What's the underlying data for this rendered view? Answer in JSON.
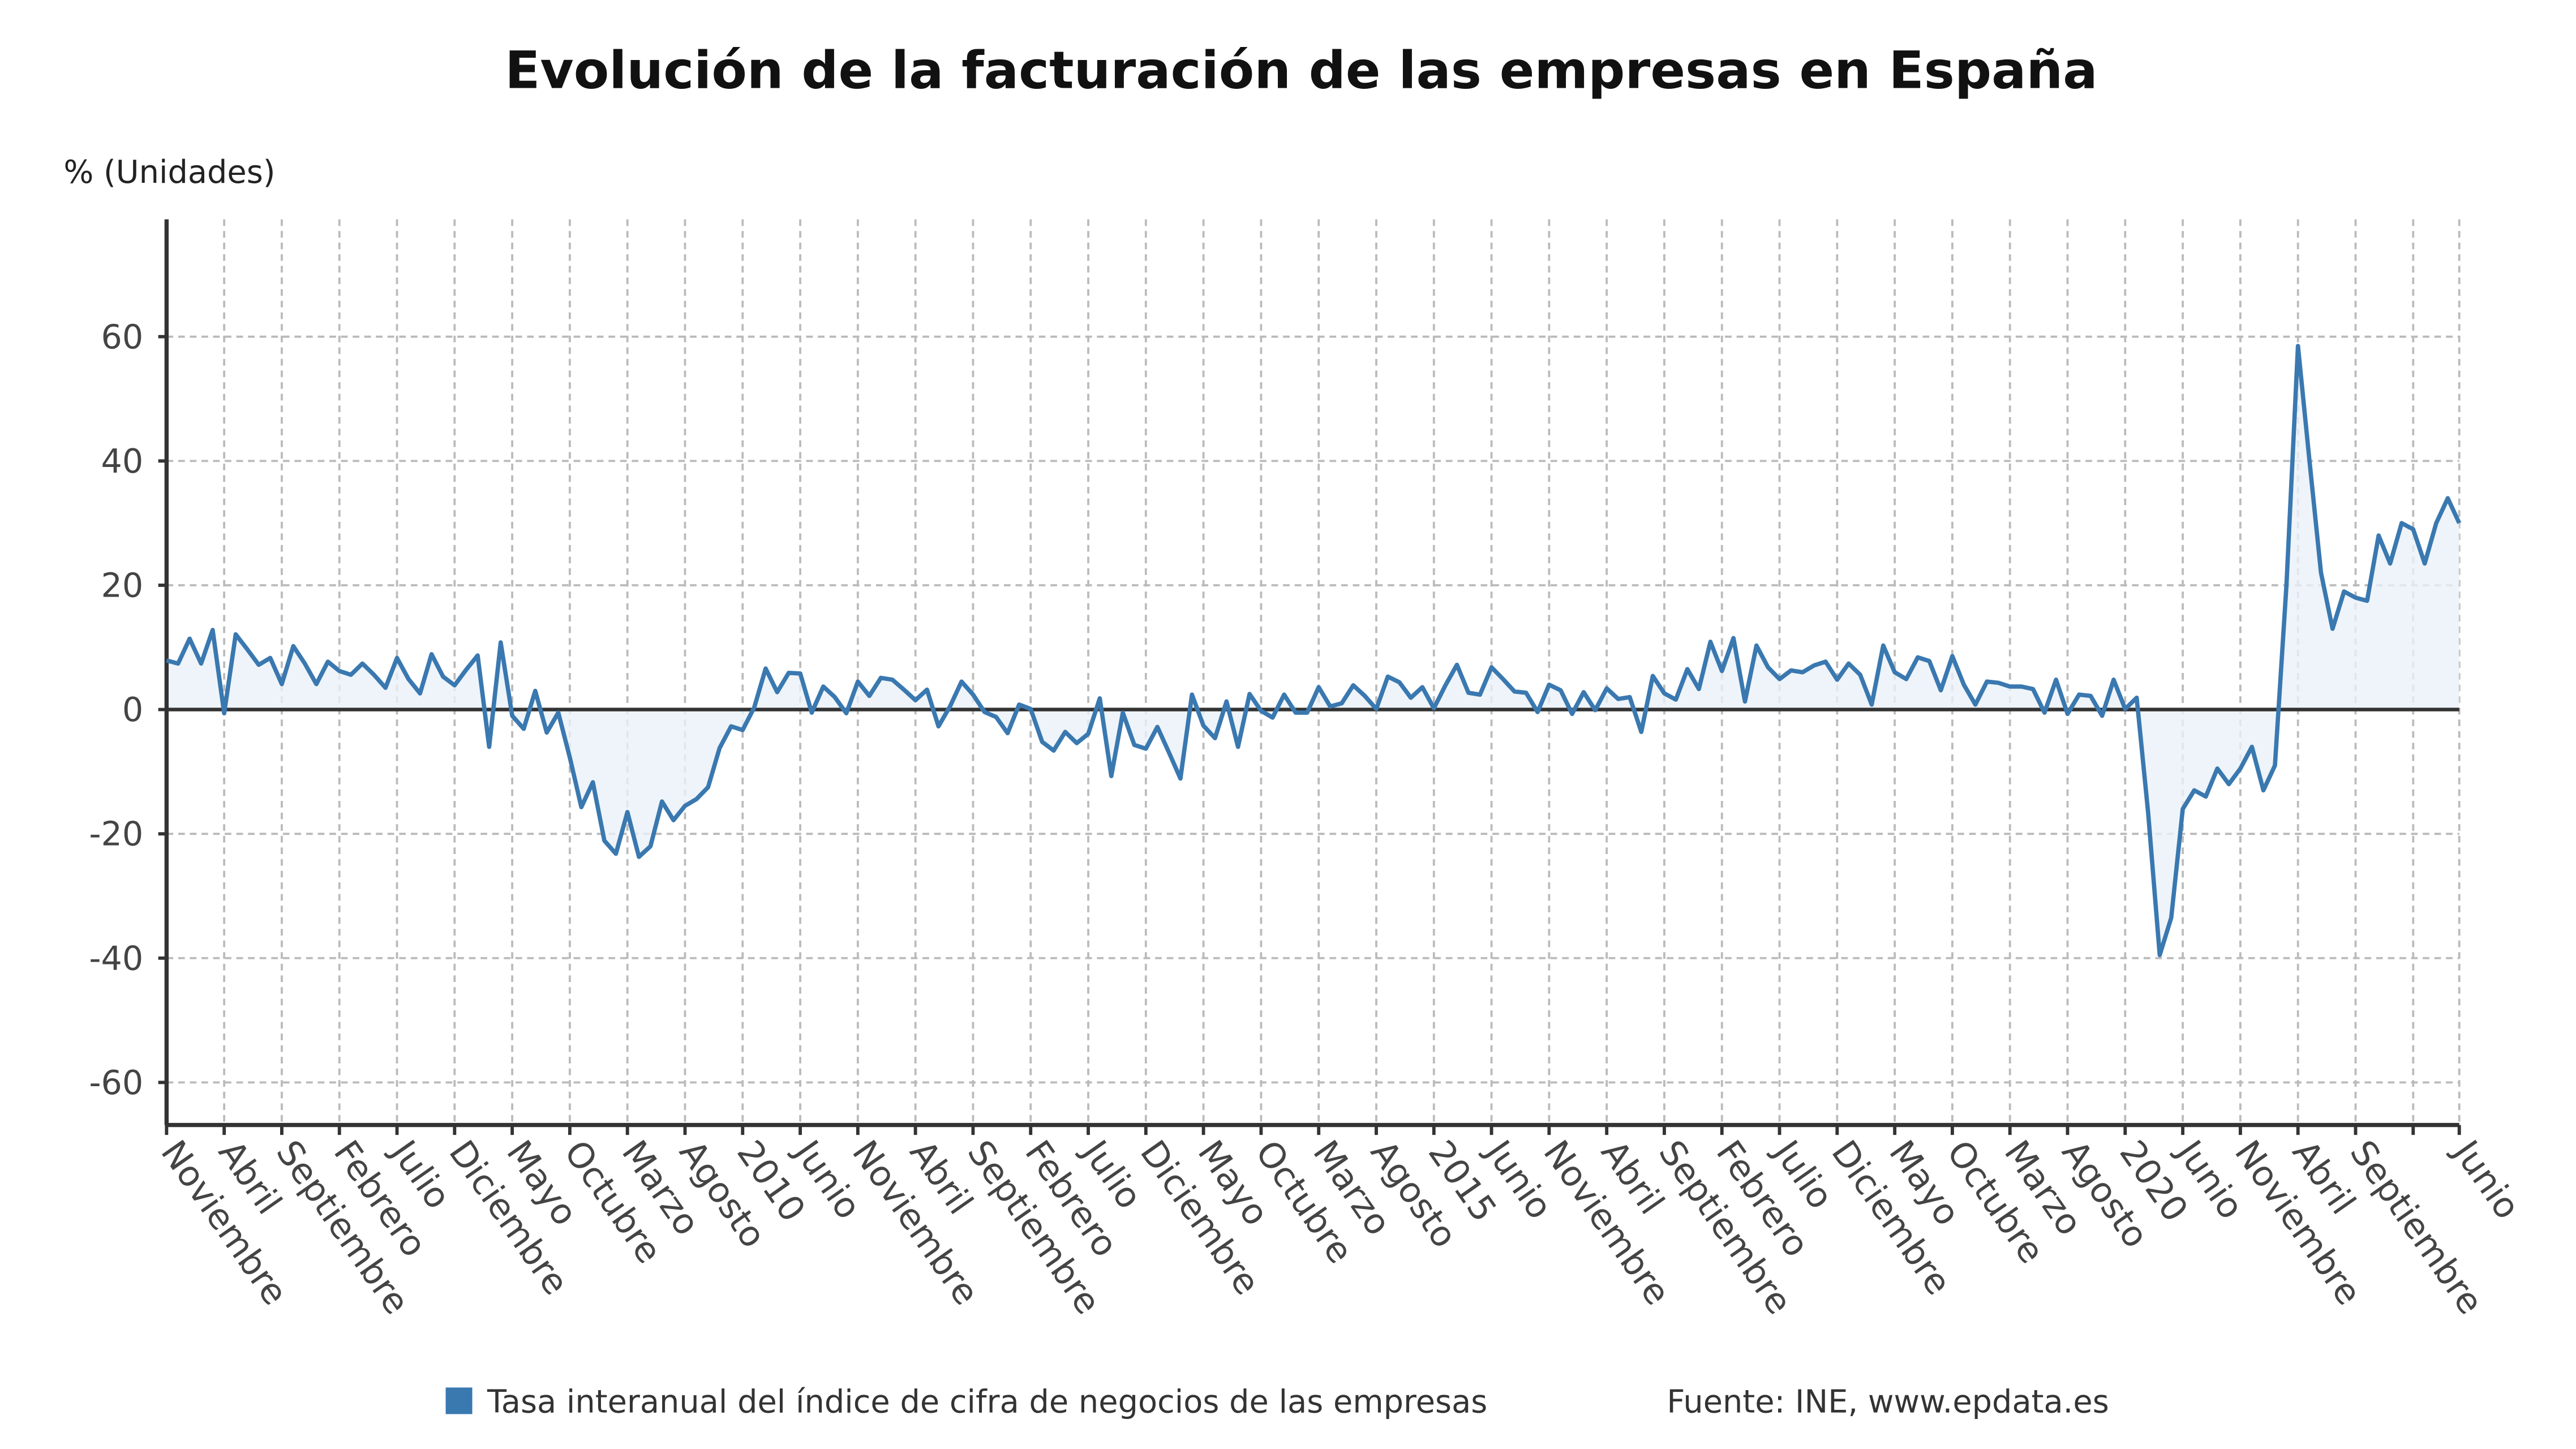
{
  "chart_data": {
    "type": "area",
    "title": "Evolución de la facturación de las empresas en España",
    "ylabel": "% (Unidades)",
    "ylim": [
      -67,
      79
    ],
    "yticks": [
      -60,
      -40,
      -20,
      0,
      20,
      40,
      60
    ],
    "grid": true,
    "legend_position": "bottom",
    "colors": {
      "line": "#3a78b0",
      "fill": "#eaf1f8",
      "axis": "#333333",
      "grid": "#bbbbbb",
      "text": "#444444"
    },
    "xticks": [
      {
        "date": "2005-11",
        "label": "Noviembre"
      },
      {
        "date": "2006-04",
        "label": "Abril"
      },
      {
        "date": "2006-09",
        "label": "Septiembre"
      },
      {
        "date": "2007-02",
        "label": "Febrero"
      },
      {
        "date": "2007-07",
        "label": "Julio"
      },
      {
        "date": "2007-12",
        "label": "Diciembre"
      },
      {
        "date": "2008-05",
        "label": "Mayo"
      },
      {
        "date": "2008-10",
        "label": "Octubre"
      },
      {
        "date": "2009-03",
        "label": "Marzo"
      },
      {
        "date": "2009-08",
        "label": "Agosto"
      },
      {
        "date": "2010-01",
        "label": "2010"
      },
      {
        "date": "2010-06",
        "label": "Junio"
      },
      {
        "date": "2010-11",
        "label": "Noviembre"
      },
      {
        "date": "2011-04",
        "label": "Abril"
      },
      {
        "date": "2011-09",
        "label": "Septiembre"
      },
      {
        "date": "2012-02",
        "label": "Febrero"
      },
      {
        "date": "2012-07",
        "label": "Julio"
      },
      {
        "date": "2012-12",
        "label": "Diciembre"
      },
      {
        "date": "2013-05",
        "label": "Mayo"
      },
      {
        "date": "2013-10",
        "label": "Octubre"
      },
      {
        "date": "2014-03",
        "label": "Marzo"
      },
      {
        "date": "2014-08",
        "label": "Agosto"
      },
      {
        "date": "2015-01",
        "label": "2015"
      },
      {
        "date": "2015-06",
        "label": "Junio"
      },
      {
        "date": "2015-11",
        "label": "Noviembre"
      },
      {
        "date": "2016-04",
        "label": "Abril"
      },
      {
        "date": "2016-09",
        "label": "Septiembre"
      },
      {
        "date": "2017-02",
        "label": "Febrero"
      },
      {
        "date": "2017-07",
        "label": "Julio"
      },
      {
        "date": "2017-12",
        "label": "Diciembre"
      },
      {
        "date": "2018-05",
        "label": "Mayo"
      },
      {
        "date": "2018-10",
        "label": "Octubre"
      },
      {
        "date": "2019-03",
        "label": "Marzo"
      },
      {
        "date": "2019-08",
        "label": "Agosto"
      },
      {
        "date": "2020-01",
        "label": "2020"
      },
      {
        "date": "2020-06",
        "label": "Junio"
      },
      {
        "date": "2020-11",
        "label": "Noviembre"
      },
      {
        "date": "2021-04",
        "label": "Abril"
      },
      {
        "date": "2021-09",
        "label": "Septiembre"
      },
      {
        "date": "2022-02",
        "label": ""
      },
      {
        "date": "2022-06",
        "label": "Junio"
      }
    ],
    "x": [
      "2005-11",
      "2005-12",
      "2006-01",
      "2006-02",
      "2006-03",
      "2006-04",
      "2006-05",
      "2006-06",
      "2006-07",
      "2006-08",
      "2006-09",
      "2006-10",
      "2006-11",
      "2006-12",
      "2007-01",
      "2007-02",
      "2007-03",
      "2007-04",
      "2007-05",
      "2007-06",
      "2007-07",
      "2007-08",
      "2007-09",
      "2007-10",
      "2007-11",
      "2007-12",
      "2008-01",
      "2008-02",
      "2008-03",
      "2008-04",
      "2008-05",
      "2008-06",
      "2008-07",
      "2008-08",
      "2008-09",
      "2008-10",
      "2008-11",
      "2008-12",
      "2009-01",
      "2009-02",
      "2009-03",
      "2009-04",
      "2009-05",
      "2009-06",
      "2009-07",
      "2009-08",
      "2009-09",
      "2009-10",
      "2009-11",
      "2009-12",
      "2010-01",
      "2010-02",
      "2010-03",
      "2010-04",
      "2010-05",
      "2010-06",
      "2010-07",
      "2010-08",
      "2010-09",
      "2010-10",
      "2010-11",
      "2010-12",
      "2011-01",
      "2011-02",
      "2011-03",
      "2011-04",
      "2011-05",
      "2011-06",
      "2011-07",
      "2011-08",
      "2011-09",
      "2011-10",
      "2011-11",
      "2011-12",
      "2012-01",
      "2012-02",
      "2012-03",
      "2012-04",
      "2012-05",
      "2012-06",
      "2012-07",
      "2012-08",
      "2012-09",
      "2012-10",
      "2012-11",
      "2012-12",
      "2013-01",
      "2013-02",
      "2013-03",
      "2013-04",
      "2013-05",
      "2013-06",
      "2013-07",
      "2013-08",
      "2013-09",
      "2013-10",
      "2013-11",
      "2013-12",
      "2014-01",
      "2014-02",
      "2014-03",
      "2014-04",
      "2014-05",
      "2014-06",
      "2014-07",
      "2014-08",
      "2014-09",
      "2014-10",
      "2014-11",
      "2014-12",
      "2015-01",
      "2015-02",
      "2015-03",
      "2015-04",
      "2015-05",
      "2015-06",
      "2015-07",
      "2015-08",
      "2015-09",
      "2015-10",
      "2015-11",
      "2015-12",
      "2016-01",
      "2016-02",
      "2016-03",
      "2016-04",
      "2016-05",
      "2016-06",
      "2016-07",
      "2016-08",
      "2016-09",
      "2016-10",
      "2016-11",
      "2016-12",
      "2017-01",
      "2017-02",
      "2017-03",
      "2017-04",
      "2017-05",
      "2017-06",
      "2017-07",
      "2017-08",
      "2017-09",
      "2017-10",
      "2017-11",
      "2017-12",
      "2018-01",
      "2018-02",
      "2018-03",
      "2018-04",
      "2018-05",
      "2018-06",
      "2018-07",
      "2018-08",
      "2018-09",
      "2018-10",
      "2018-11",
      "2018-12",
      "2019-01",
      "2019-02",
      "2019-03",
      "2019-04",
      "2019-05",
      "2019-06",
      "2019-07",
      "2019-08",
      "2019-09",
      "2019-10",
      "2019-11",
      "2019-12",
      "2020-01",
      "2020-02",
      "2020-03",
      "2020-04",
      "2020-05",
      "2020-06",
      "2020-07",
      "2020-08",
      "2020-09",
      "2020-10",
      "2020-11",
      "2020-12",
      "2021-01",
      "2021-02",
      "2021-03",
      "2021-04",
      "2021-05",
      "2021-06",
      "2021-07",
      "2021-08",
      "2021-09",
      "2021-10",
      "2021-11",
      "2021-12",
      "2022-01",
      "2022-02",
      "2022-03",
      "2022-04",
      "2022-05",
      "2022-06"
    ],
    "series": [
      {
        "name": "Tasa interanual del índice de cifra de negocios de las empresas",
        "values": [
          7.9,
          7.4,
          11.4,
          7.4,
          12.8,
          -0.6,
          12.1,
          9.7,
          7.2,
          8.3,
          4.1,
          10.2,
          7.4,
          4.1,
          7.7,
          6.2,
          5.6,
          7.4,
          5.6,
          3.5,
          8.3,
          4.9,
          2.6,
          8.9,
          5.3,
          3.9,
          6.4,
          8.7,
          -6.0,
          10.8,
          -1.0,
          -3.1,
          3.0,
          -3.7,
          -0.5,
          -7.7,
          -15.7,
          -11.7,
          -21.1,
          -23.2,
          -16.5,
          -23.7,
          -22.0,
          -14.8,
          -17.8,
          -15.5,
          -14.4,
          -12.5,
          -6.2,
          -2.7,
          -3.3,
          0.3,
          6.6,
          2.8,
          5.9,
          5.8,
          -0.5,
          3.7,
          2.0,
          -0.6,
          4.5,
          2.2,
          5.1,
          4.8,
          3.2,
          1.5,
          3.2,
          -2.7,
          0.5,
          4.5,
          2.4,
          -0.4,
          -1.2,
          -3.8,
          0.8,
          0.1,
          -5.2,
          -6.6,
          -3.6,
          -5.4,
          -3.9,
          1.8,
          -10.7,
          -0.5,
          -5.7,
          -6.3,
          -2.8,
          -6.9,
          -11.1,
          2.4,
          -2.6,
          -4.6,
          1.3,
          -6.0,
          2.5,
          -0.2,
          -1.3,
          2.4,
          -0.5,
          -0.5,
          3.6,
          0.5,
          1.0,
          3.9,
          2.2,
          0.1,
          5.3,
          4.4,
          1.9,
          3.6,
          0.2,
          3.9,
          7.2,
          2.7,
          2.4,
          6.8,
          4.9,
          2.9,
          2.7,
          -0.4,
          4.0,
          3.1,
          -0.7,
          2.8,
          -0.1,
          3.4,
          1.7,
          2.0,
          -3.6,
          5.4,
          2.6,
          1.6,
          6.5,
          3.3,
          10.9,
          6.2,
          11.5,
          1.3,
          10.3,
          6.8,
          4.9,
          6.3,
          6.0,
          7.1,
          7.7,
          4.8,
          7.4,
          5.6,
          0.8,
          10.3,
          6.0,
          4.9,
          8.4,
          7.8,
          3.1,
          8.6,
          4.0,
          0.8,
          4.5,
          4.3,
          3.7,
          3.7,
          3.3,
          -0.5,
          4.8,
          -0.7,
          2.4,
          2.2,
          -1.0,
          4.8,
          0.1,
          1.9,
          -16.7,
          -39.5,
          -33.5,
          -16.0,
          -13.0,
          -14.0,
          -9.5,
          -12.0,
          -9.5,
          -6.0,
          -13.0,
          -9.0,
          20.0,
          58.5,
          40.0,
          22.0,
          13.0,
          19.0,
          18.0,
          17.5,
          28.0,
          23.5,
          30.0,
          29.0,
          23.5,
          30.0,
          34.0,
          30.0
        ]
      }
    ],
    "source": "Fuente: INE, www.epdata.es"
  }
}
